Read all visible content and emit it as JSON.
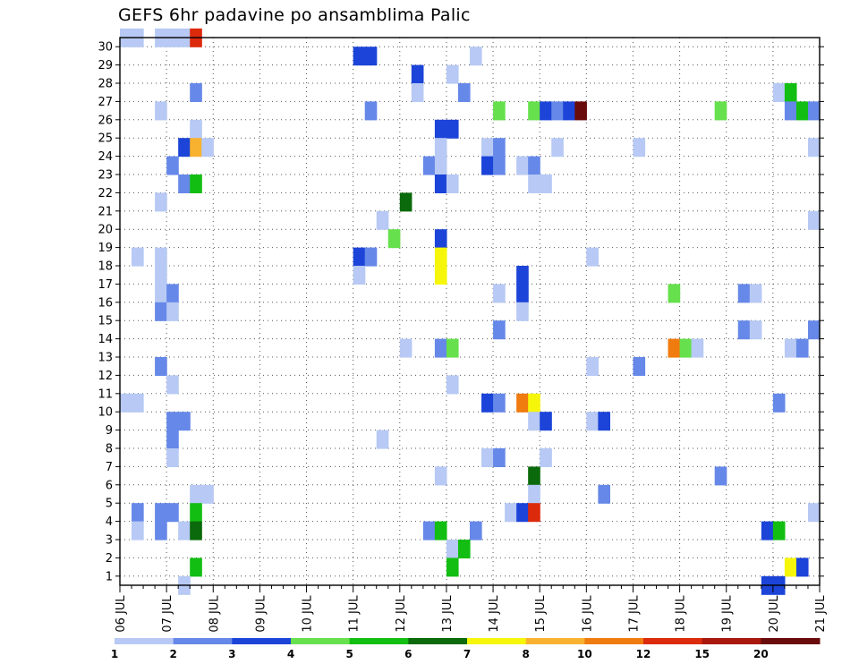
{
  "chart_data": {
    "type": "heatmap",
    "title": "GEFS 6hr padavine po ansamblima Palic",
    "xlabel": "",
    "ylabel": "",
    "x_unit": "6-hour step",
    "x_range": [
      0,
      60
    ],
    "x_tick_labels": [
      "06 JUL",
      "07 JUL",
      "08 JUL",
      "09 JUL",
      "10 JUL",
      "11 JUL",
      "12 JUL",
      "13 JUL",
      "14 JUL",
      "15 JUL",
      "16 JUL",
      "17 JUL",
      "18 JUL",
      "19 JUL",
      "20 JUL",
      "21 JUL"
    ],
    "y_range": [
      0,
      30
    ],
    "y_tick_labels": [
      "1",
      "2",
      "3",
      "4",
      "5",
      "6",
      "7",
      "8",
      "9",
      "10",
      "11",
      "12",
      "13",
      "14",
      "15",
      "16",
      "17",
      "18",
      "19",
      "20",
      "21",
      "22",
      "23",
      "24",
      "25",
      "26",
      "27",
      "28",
      "29",
      "30"
    ],
    "grid": true,
    "legend_position": "bottom",
    "colorbar": {
      "labels": [
        "1",
        "2",
        "3",
        "4",
        "5",
        "6",
        "7",
        "8",
        "10",
        "12",
        "15",
        "20"
      ],
      "colors": [
        "#b7c9f4",
        "#6688e8",
        "#1c44d8",
        "#66e04c",
        "#13be13",
        "#0b6a0b",
        "#f6f60a",
        "#f8b230",
        "#f07b0e",
        "#dc2a0c",
        "#a8180c",
        "#6a0b0b"
      ]
    },
    "cells": [
      {
        "x": 0,
        "y": 29,
        "v": 1
      },
      {
        "x": 1,
        "y": 29,
        "v": 1
      },
      {
        "x": 3,
        "y": 29,
        "v": 1
      },
      {
        "x": 4,
        "y": 29,
        "v": 1
      },
      {
        "x": 5,
        "y": 29,
        "v": 1
      },
      {
        "x": 6,
        "y": 29,
        "v": 12
      },
      {
        "x": 20,
        "y": 28,
        "v": 3
      },
      {
        "x": 21,
        "y": 28,
        "v": 3
      },
      {
        "x": 30,
        "y": 28,
        "v": 1
      },
      {
        "x": 25,
        "y": 27,
        "v": 3
      },
      {
        "x": 28,
        "y": 27,
        "v": 1
      },
      {
        "x": 6,
        "y": 26,
        "v": 2
      },
      {
        "x": 25,
        "y": 26,
        "v": 1
      },
      {
        "x": 29,
        "y": 26,
        "v": 2
      },
      {
        "x": 56,
        "y": 26,
        "v": 1
      },
      {
        "x": 57,
        "y": 26,
        "v": 5
      },
      {
        "x": 3,
        "y": 25,
        "v": 1
      },
      {
        "x": 21,
        "y": 25,
        "v": 2
      },
      {
        "x": 32,
        "y": 25,
        "v": 4
      },
      {
        "x": 35,
        "y": 25,
        "v": 4
      },
      {
        "x": 36,
        "y": 25,
        "v": 3
      },
      {
        "x": 37,
        "y": 25,
        "v": 2
      },
      {
        "x": 38,
        "y": 25,
        "v": 3
      },
      {
        "x": 39,
        "y": 25,
        "v": 20
      },
      {
        "x": 51,
        "y": 25,
        "v": 4
      },
      {
        "x": 57,
        "y": 25,
        "v": 2
      },
      {
        "x": 58,
        "y": 25,
        "v": 5
      },
      {
        "x": 59,
        "y": 25,
        "v": 2
      },
      {
        "x": 6,
        "y": 24,
        "v": 1
      },
      {
        "x": 27,
        "y": 24,
        "v": 3
      },
      {
        "x": 28,
        "y": 24,
        "v": 3
      },
      {
        "x": 5,
        "y": 23,
        "v": 3
      },
      {
        "x": 6,
        "y": 23,
        "v": 8
      },
      {
        "x": 7,
        "y": 23,
        "v": 1
      },
      {
        "x": 27,
        "y": 23,
        "v": 1
      },
      {
        "x": 31,
        "y": 23,
        "v": 1
      },
      {
        "x": 32,
        "y": 23,
        "v": 2
      },
      {
        "x": 37,
        "y": 23,
        "v": 1
      },
      {
        "x": 44,
        "y": 23,
        "v": 1
      },
      {
        "x": 59,
        "y": 23,
        "v": 1
      },
      {
        "x": 4,
        "y": 22,
        "v": 2
      },
      {
        "x": 26,
        "y": 22,
        "v": 2
      },
      {
        "x": 27,
        "y": 22,
        "v": 1
      },
      {
        "x": 31,
        "y": 22,
        "v": 3
      },
      {
        "x": 32,
        "y": 22,
        "v": 2
      },
      {
        "x": 34,
        "y": 22,
        "v": 1
      },
      {
        "x": 35,
        "y": 22,
        "v": 2
      },
      {
        "x": 5,
        "y": 21,
        "v": 2
      },
      {
        "x": 6,
        "y": 21,
        "v": 5
      },
      {
        "x": 27,
        "y": 21,
        "v": 3
      },
      {
        "x": 28,
        "y": 21,
        "v": 1
      },
      {
        "x": 35,
        "y": 21,
        "v": 1
      },
      {
        "x": 36,
        "y": 21,
        "v": 1
      },
      {
        "x": 3,
        "y": 20,
        "v": 1
      },
      {
        "x": 24,
        "y": 20,
        "v": 6
      },
      {
        "x": 22,
        "y": 19,
        "v": 1
      },
      {
        "x": 59,
        "y": 19,
        "v": 1
      },
      {
        "x": 23,
        "y": 18,
        "v": 4
      },
      {
        "x": 27,
        "y": 18,
        "v": 3
      },
      {
        "x": 1,
        "y": 17,
        "v": 1
      },
      {
        "x": 3,
        "y": 17,
        "v": 1
      },
      {
        "x": 20,
        "y": 17,
        "v": 3
      },
      {
        "x": 21,
        "y": 17,
        "v": 2
      },
      {
        "x": 27,
        "y": 17,
        "v": 7
      },
      {
        "x": 40,
        "y": 17,
        "v": 1
      },
      {
        "x": 3,
        "y": 16,
        "v": 1
      },
      {
        "x": 20,
        "y": 16,
        "v": 1
      },
      {
        "x": 27,
        "y": 16,
        "v": 7
      },
      {
        "x": 34,
        "y": 16,
        "v": 3
      },
      {
        "x": 3,
        "y": 15,
        "v": 1
      },
      {
        "x": 4,
        "y": 15,
        "v": 2
      },
      {
        "x": 32,
        "y": 15,
        "v": 1
      },
      {
        "x": 34,
        "y": 15,
        "v": 3
      },
      {
        "x": 47,
        "y": 15,
        "v": 4
      },
      {
        "x": 53,
        "y": 15,
        "v": 2
      },
      {
        "x": 54,
        "y": 15,
        "v": 1
      },
      {
        "x": 3,
        "y": 14,
        "v": 2
      },
      {
        "x": 4,
        "y": 14,
        "v": 1
      },
      {
        "x": 34,
        "y": 14,
        "v": 1
      },
      {
        "x": 32,
        "y": 13,
        "v": 2
      },
      {
        "x": 53,
        "y": 13,
        "v": 2
      },
      {
        "x": 54,
        "y": 13,
        "v": 1
      },
      {
        "x": 59,
        "y": 13,
        "v": 2
      },
      {
        "x": 24,
        "y": 12,
        "v": 1
      },
      {
        "x": 27,
        "y": 12,
        "v": 2
      },
      {
        "x": 28,
        "y": 12,
        "v": 4
      },
      {
        "x": 47,
        "y": 12,
        "v": 10
      },
      {
        "x": 48,
        "y": 12,
        "v": 4
      },
      {
        "x": 49,
        "y": 12,
        "v": 1
      },
      {
        "x": 57,
        "y": 12,
        "v": 1
      },
      {
        "x": 58,
        "y": 12,
        "v": 2
      },
      {
        "x": 3,
        "y": 11,
        "v": 2
      },
      {
        "x": 40,
        "y": 11,
        "v": 1
      },
      {
        "x": 44,
        "y": 11,
        "v": 2
      },
      {
        "x": 4,
        "y": 10,
        "v": 1
      },
      {
        "x": 28,
        "y": 10,
        "v": 1
      },
      {
        "x": 0,
        "y": 9,
        "v": 1
      },
      {
        "x": 1,
        "y": 9,
        "v": 1
      },
      {
        "x": 31,
        "y": 9,
        "v": 3
      },
      {
        "x": 32,
        "y": 9,
        "v": 2
      },
      {
        "x": 34,
        "y": 9,
        "v": 10
      },
      {
        "x": 35,
        "y": 9,
        "v": 7
      },
      {
        "x": 56,
        "y": 9,
        "v": 2
      },
      {
        "x": 4,
        "y": 8,
        "v": 2
      },
      {
        "x": 5,
        "y": 8,
        "v": 2
      },
      {
        "x": 35,
        "y": 8,
        "v": 1
      },
      {
        "x": 36,
        "y": 8,
        "v": 3
      },
      {
        "x": 40,
        "y": 8,
        "v": 1
      },
      {
        "x": 41,
        "y": 8,
        "v": 3
      },
      {
        "x": 4,
        "y": 7,
        "v": 2
      },
      {
        "x": 22,
        "y": 7,
        "v": 1
      },
      {
        "x": 4,
        "y": 6,
        "v": 1
      },
      {
        "x": 31,
        "y": 6,
        "v": 1
      },
      {
        "x": 32,
        "y": 6,
        "v": 2
      },
      {
        "x": 36,
        "y": 6,
        "v": 1
      },
      {
        "x": 27,
        "y": 5,
        "v": 1
      },
      {
        "x": 35,
        "y": 5,
        "v": 6
      },
      {
        "x": 51,
        "y": 5,
        "v": 2
      },
      {
        "x": 6,
        "y": 4,
        "v": 1
      },
      {
        "x": 7,
        "y": 4,
        "v": 1
      },
      {
        "x": 35,
        "y": 4,
        "v": 1
      },
      {
        "x": 41,
        "y": 4,
        "v": 2
      },
      {
        "x": 1,
        "y": 3,
        "v": 2
      },
      {
        "x": 3,
        "y": 3,
        "v": 2
      },
      {
        "x": 4,
        "y": 3,
        "v": 2
      },
      {
        "x": 6,
        "y": 3,
        "v": 5
      },
      {
        "x": 33,
        "y": 3,
        "v": 1
      },
      {
        "x": 34,
        "y": 3,
        "v": 3
      },
      {
        "x": 35,
        "y": 3,
        "v": 12
      },
      {
        "x": 59,
        "y": 3,
        "v": 1
      },
      {
        "x": 1,
        "y": 2,
        "v": 1
      },
      {
        "x": 3,
        "y": 2,
        "v": 2
      },
      {
        "x": 5,
        "y": 2,
        "v": 1
      },
      {
        "x": 6,
        "y": 2,
        "v": 6
      },
      {
        "x": 26,
        "y": 2,
        "v": 2
      },
      {
        "x": 27,
        "y": 2,
        "v": 5
      },
      {
        "x": 30,
        "y": 2,
        "v": 2
      },
      {
        "x": 55,
        "y": 2,
        "v": 3
      },
      {
        "x": 56,
        "y": 2,
        "v": 5
      },
      {
        "x": 28,
        "y": 1,
        "v": 1
      },
      {
        "x": 29,
        "y": 1,
        "v": 5
      },
      {
        "x": 6,
        "y": 0,
        "v": 5
      },
      {
        "x": 28,
        "y": 0,
        "v": 5
      },
      {
        "x": 57,
        "y": 0,
        "v": 7
      },
      {
        "x": 58,
        "y": 0,
        "v": 3
      },
      {
        "x": 5,
        "y": -1,
        "v": 1
      },
      {
        "x": 55,
        "y": -1,
        "v": 3
      },
      {
        "x": 56,
        "y": -1,
        "v": 3
      }
    ]
  }
}
